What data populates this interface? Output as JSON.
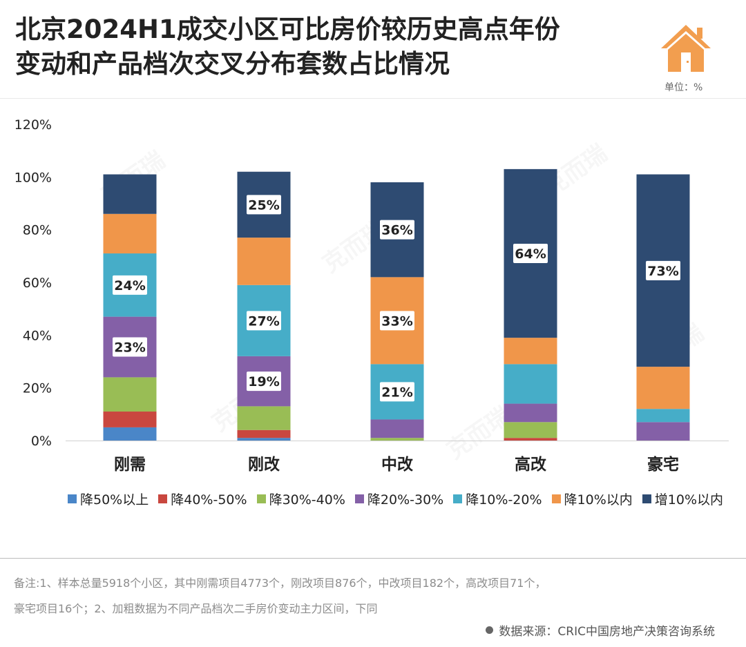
{
  "header": {
    "title_line1": "北京2024H1成交小区可比房价较历史高点年份",
    "title_line2": "变动和产品档次交叉分布套数占比情况",
    "unit": "单位：%",
    "logo_icon": "house-icon"
  },
  "colors": {
    "降50%以上": "#4a86c8",
    "降40%-50%": "#c9473f",
    "降30%-40%": "#99bd55",
    "降20%-30%": "#8460a7",
    "降10%-20%": "#46adc8",
    "降10%以内": "#f0964a",
    "增10%以内": "#2e4b72",
    "logo": "#f29e4f"
  },
  "chart_data": {
    "type": "bar",
    "stacked": true,
    "categories": [
      "刚需",
      "刚改",
      "中改",
      "高改",
      "豪宅"
    ],
    "ylim": [
      0,
      120
    ],
    "yticks": [
      "0%",
      "20%",
      "40%",
      "60%",
      "80%",
      "100%",
      "120%"
    ],
    "series": [
      {
        "name": "降50%以上",
        "values": [
          5,
          1,
          0,
          0,
          0
        ]
      },
      {
        "name": "降40%-50%",
        "values": [
          6,
          3,
          0,
          1,
          0
        ]
      },
      {
        "name": "降30%-40%",
        "values": [
          13,
          9,
          1,
          6,
          0
        ]
      },
      {
        "name": "降20%-30%",
        "values": [
          23,
          19,
          7,
          7,
          7
        ]
      },
      {
        "name": "降10%-20%",
        "values": [
          24,
          27,
          21,
          15,
          5
        ]
      },
      {
        "name": "降10%以内",
        "values": [
          15,
          18,
          33,
          10,
          16
        ]
      },
      {
        "name": "增10%以内",
        "values": [
          15,
          25,
          36,
          64,
          73
        ]
      }
    ],
    "labels": [
      {
        "category": "刚需",
        "series": "降10%-20%",
        "text": "24%"
      },
      {
        "category": "刚需",
        "series": "降20%-30%",
        "text": "23%"
      },
      {
        "category": "刚改",
        "series": "增10%以内",
        "text": "25%"
      },
      {
        "category": "刚改",
        "series": "降10%-20%",
        "text": "27%"
      },
      {
        "category": "刚改",
        "series": "降20%-30%",
        "text": "19%"
      },
      {
        "category": "中改",
        "series": "增10%以内",
        "text": "36%"
      },
      {
        "category": "中改",
        "series": "降10%以内",
        "text": "33%"
      },
      {
        "category": "中改",
        "series": "降10%-20%",
        "text": "21%"
      },
      {
        "category": "高改",
        "series": "增10%以内",
        "text": "64%"
      },
      {
        "category": "豪宅",
        "series": "增10%以内",
        "text": "73%"
      }
    ]
  },
  "footer": {
    "note_line1": "备注:1、样本总量5918个小区，其中刚需项目4773个，刚改项目876个，中改项目182个，高改项目71个，",
    "note_line2": "豪宅项目16个；2、加粗数据为不同产品档次二手房价变动主力区间，下同",
    "source": "数据来源：CRIC中国房地产决策咨询系统"
  }
}
